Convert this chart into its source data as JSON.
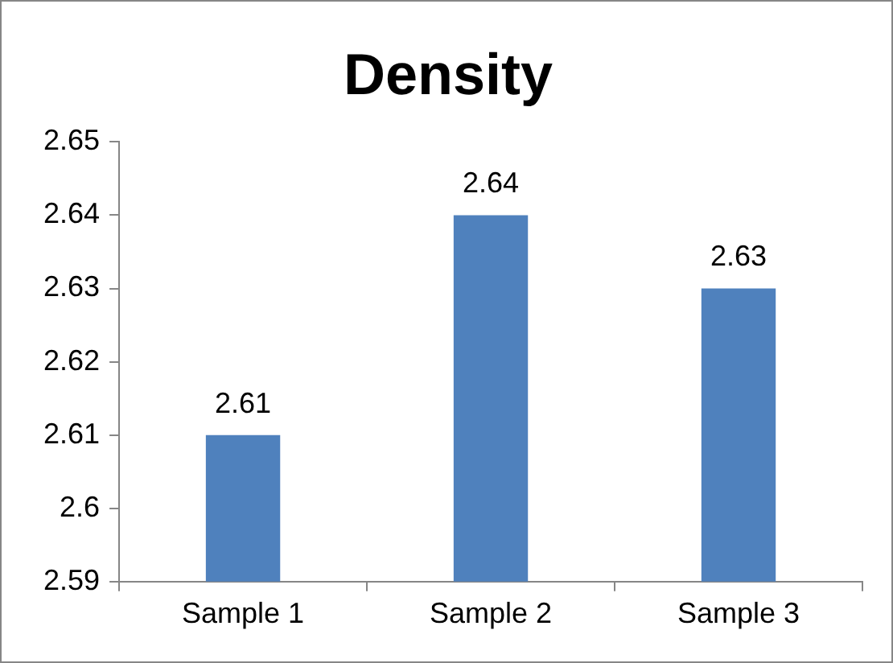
{
  "chart_data": {
    "type": "bar",
    "title": "Density",
    "categories": [
      "Sample 1",
      "Sample 2",
      "Sample 3"
    ],
    "values": [
      2.61,
      2.64,
      2.63
    ],
    "color": "#4f81bd",
    "ylim": [
      2.59,
      2.65
    ],
    "yticks": [
      2.59,
      2.6,
      2.61,
      2.62,
      2.63,
      2.64,
      2.65
    ],
    "grid": false,
    "legend": false,
    "data_labels": true
  }
}
